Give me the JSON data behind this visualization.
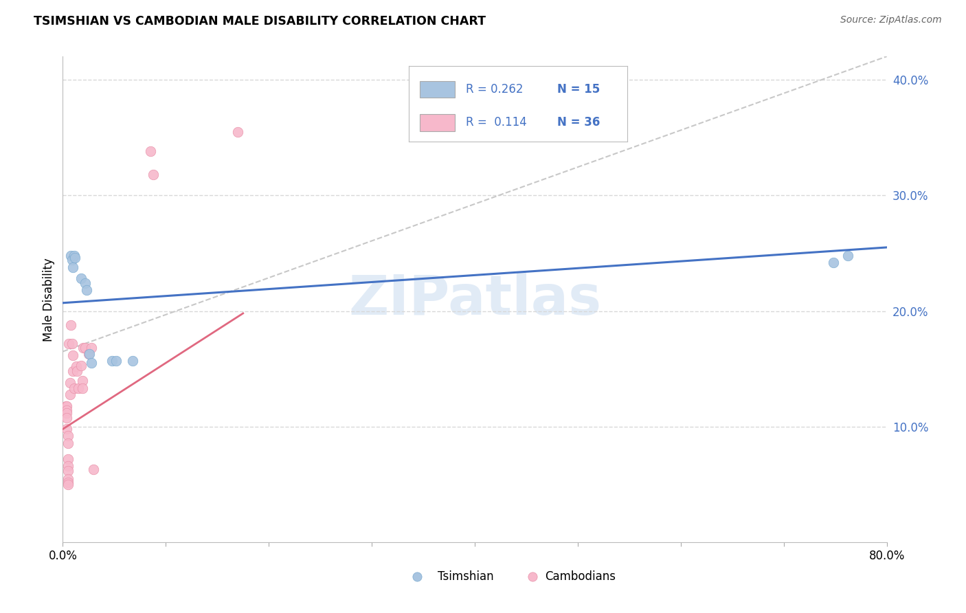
{
  "title": "TSIMSHIAN VS CAMBODIAN MALE DISABILITY CORRELATION CHART",
  "source": "Source: ZipAtlas.com",
  "ylabel": "Male Disability",
  "xlim": [
    0.0,
    0.8
  ],
  "ylim": [
    0.0,
    0.42
  ],
  "xticks": [
    0.0,
    0.1,
    0.2,
    0.3,
    0.4,
    0.5,
    0.6,
    0.7,
    0.8
  ],
  "yticks_right": [
    0.1,
    0.2,
    0.3,
    0.4
  ],
  "ytick_right_labels": [
    "10.0%",
    "20.0%",
    "30.0%",
    "40.0%"
  ],
  "background_color": "#ffffff",
  "grid_color": "#d8d8d8",
  "watermark": "ZIPatlas",
  "tsimshian_color": "#a8c4e0",
  "tsimshian_edge_color": "#7aaad0",
  "cambodian_color": "#f7b8cb",
  "cambodian_edge_color": "#e890a8",
  "tsimshian_line_color": "#4472c4",
  "cambodian_line_color": "#e06880",
  "dashed_line_color": "#c8c8c8",
  "legend_box_color": "#aaaaaa",
  "legend_text_color": "#4472c4",
  "tsimshian_x": [
    0.008,
    0.009,
    0.01,
    0.011,
    0.012,
    0.018,
    0.022,
    0.023,
    0.026,
    0.028,
    0.048,
    0.052,
    0.068,
    0.748,
    0.762
  ],
  "tsimshian_y": [
    0.248,
    0.244,
    0.238,
    0.248,
    0.246,
    0.228,
    0.224,
    0.218,
    0.163,
    0.155,
    0.157,
    0.157,
    0.157,
    0.242,
    0.248
  ],
  "cambodian_x": [
    0.003,
    0.004,
    0.004,
    0.004,
    0.004,
    0.004,
    0.005,
    0.005,
    0.005,
    0.005,
    0.005,
    0.005,
    0.005,
    0.005,
    0.006,
    0.007,
    0.007,
    0.008,
    0.009,
    0.01,
    0.01,
    0.011,
    0.013,
    0.014,
    0.015,
    0.018,
    0.019,
    0.019,
    0.02,
    0.022,
    0.025,
    0.028,
    0.03,
    0.085,
    0.088,
    0.17
  ],
  "cambodian_y": [
    0.118,
    0.118,
    0.114,
    0.112,
    0.108,
    0.098,
    0.092,
    0.086,
    0.072,
    0.066,
    0.062,
    0.055,
    0.052,
    0.05,
    0.172,
    0.138,
    0.128,
    0.188,
    0.172,
    0.162,
    0.148,
    0.133,
    0.152,
    0.148,
    0.133,
    0.153,
    0.14,
    0.133,
    0.168,
    0.168,
    0.163,
    0.168,
    0.063,
    0.338,
    0.318,
    0.355
  ],
  "ts_regline_x": [
    0.0,
    0.8
  ],
  "ts_regline_y": [
    0.207,
    0.255
  ],
  "cam_regline_x": [
    0.0,
    0.175
  ],
  "cam_regline_y": [
    0.098,
    0.198
  ],
  "dash_line_x": [
    0.0,
    0.8
  ],
  "dash_line_y": [
    0.165,
    0.42
  ]
}
